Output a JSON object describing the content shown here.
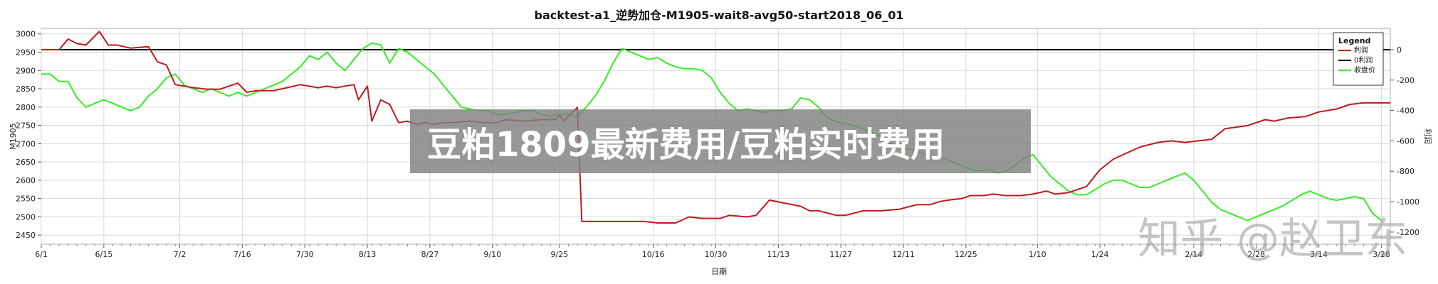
{
  "overlay_text": "豆粕1809最新费用/豆粕实时费用",
  "watermark_text": "知乎 @赵卫东",
  "colors": {
    "profit": "#c0191e",
    "zero": "#000000",
    "close": "#33ee22",
    "grid": "#d8d8d8",
    "overlay": "#808080"
  },
  "chart_data": {
    "type": "line",
    "title": "backtest-a1_逆势加仓-M1905-wait8-avg50-start2018_06_01",
    "xlabel": "日期",
    "ylabel_left": "M1905",
    "ylabel_right": "利润",
    "legend_title": "Legend",
    "legend_position": "top-right",
    "grid": true,
    "x_range": [
      0,
      302
    ],
    "x_ticks": [
      {
        "label": "6/1",
        "day": 0
      },
      {
        "label": "6/15",
        "day": 14
      },
      {
        "label": "7/2",
        "day": 31
      },
      {
        "label": "7/16",
        "day": 45
      },
      {
        "label": "7/30",
        "day": 59
      },
      {
        "label": "8/13",
        "day": 73
      },
      {
        "label": "8/27",
        "day": 87
      },
      {
        "label": "9/10",
        "day": 101
      },
      {
        "label": "9/25",
        "day": 116
      },
      {
        "label": "10/16",
        "day": 137
      },
      {
        "label": "10/30",
        "day": 151
      },
      {
        "label": "11/13",
        "day": 165
      },
      {
        "label": "11/27",
        "day": 179
      },
      {
        "label": "12/11",
        "day": 193
      },
      {
        "label": "12/25",
        "day": 207
      },
      {
        "label": "1/10",
        "day": 223
      },
      {
        "label": "1/24",
        "day": 237
      },
      {
        "label": "2/14",
        "day": 258
      },
      {
        "label": "2/28",
        "day": 272
      },
      {
        "label": "3/14",
        "day": 286
      },
      {
        "label": "3/28",
        "day": 300
      }
    ],
    "y_left": {
      "range": [
        2425,
        3015
      ],
      "ticks": [
        2450,
        2500,
        2550,
        2600,
        2650,
        2700,
        2750,
        2800,
        2850,
        2900,
        2950,
        3000
      ]
    },
    "y_right": {
      "range": [
        -1280,
        140
      ],
      "ticks": [
        0,
        -200,
        -400,
        -600,
        -800,
        -1000,
        -1200
      ]
    },
    "series": [
      {
        "name": "利润",
        "axis": "right",
        "color": "#c0191e",
        "x": [
          0,
          4,
          6,
          8,
          10,
          13,
          15,
          17,
          20,
          24,
          26,
          28,
          30,
          32,
          34,
          37,
          40,
          42,
          44,
          46,
          48,
          52,
          55,
          58,
          60,
          62,
          64,
          66,
          70,
          71,
          73,
          74,
          76,
          78,
          80,
          82,
          84,
          86,
          88,
          90,
          92,
          96,
          99,
          102,
          104,
          108,
          112,
          115,
          116,
          117,
          120,
          121,
          125,
          130,
          135,
          138,
          142,
          145,
          148,
          152,
          154,
          158,
          160,
          163,
          170,
          172,
          174,
          178,
          180,
          184,
          188,
          192,
          196,
          199,
          201,
          203,
          206,
          208,
          211,
          213,
          216,
          219,
          222,
          225,
          227,
          230,
          234,
          237,
          240,
          243,
          246,
          250,
          253,
          256,
          259,
          262,
          265,
          270,
          274,
          276,
          279,
          283,
          286,
          290,
          293,
          296,
          302
        ],
        "values": [
          0,
          0,
          70,
          40,
          30,
          120,
          30,
          30,
          10,
          20,
          -80,
          -100,
          -230,
          -240,
          -250,
          -260,
          -260,
          -240,
          -220,
          -280,
          -270,
          -270,
          -250,
          -230,
          -240,
          -250,
          -240,
          -250,
          -230,
          -330,
          -240,
          -470,
          -330,
          -360,
          -480,
          -470,
          -490,
          -480,
          -490,
          -480,
          -480,
          -470,
          -480,
          -480,
          -460,
          -470,
          -460,
          -460,
          -430,
          -470,
          -380,
          -1130,
          -1130,
          -1130,
          -1130,
          -1140,
          -1140,
          -1100,
          -1110,
          -1110,
          -1090,
          -1100,
          -1090,
          -990,
          -1030,
          -1060,
          -1060,
          -1090,
          -1090,
          -1060,
          -1060,
          -1050,
          -1020,
          -1020,
          -1000,
          -990,
          -980,
          -960,
          -960,
          -950,
          -960,
          -960,
          -950,
          -930,
          -950,
          -940,
          -900,
          -790,
          -720,
          -680,
          -640,
          -610,
          -600,
          -610,
          -600,
          -590,
          -520,
          -500,
          -460,
          -470,
          -450,
          -440,
          -410,
          -390,
          -360,
          -350,
          -350
        ]
      },
      {
        "name": "0利润",
        "axis": "right",
        "color": "#000000",
        "x": [
          0,
          302
        ],
        "values": [
          0,
          0
        ]
      },
      {
        "name": "收盘价",
        "axis": "left",
        "color": "#33ee22",
        "x": [
          0,
          2,
          4,
          6,
          8,
          10,
          12,
          14,
          16,
          18,
          20,
          22,
          24,
          26,
          28,
          30,
          32,
          34,
          36,
          38,
          40,
          42,
          44,
          46,
          48,
          50,
          52,
          54,
          56,
          58,
          60,
          62,
          64,
          66,
          68,
          70,
          72,
          74,
          76,
          78,
          80,
          82,
          84,
          86,
          88,
          90,
          92,
          94,
          96,
          98,
          100,
          102,
          104,
          106,
          108,
          110,
          112,
          114,
          116,
          118,
          120,
          122,
          124,
          126,
          128,
          130,
          132,
          134,
          136,
          138,
          140,
          142,
          144,
          146,
          148,
          150,
          152,
          154,
          156,
          158,
          160,
          162,
          164,
          166,
          168,
          170,
          172,
          174,
          176,
          178,
          180,
          182,
          184,
          186,
          188,
          190,
          192,
          194,
          196,
          198,
          200,
          202,
          204,
          206,
          208,
          210,
          212,
          214,
          216,
          218,
          220,
          222,
          224,
          226,
          228,
          230,
          232,
          234,
          236,
          238,
          240,
          242,
          244,
          246,
          248,
          250,
          252,
          254,
          256,
          258,
          260,
          262,
          264,
          266,
          268,
          270,
          272,
          274,
          276,
          278,
          280,
          282,
          284,
          286,
          288,
          290,
          292,
          294,
          296,
          298,
          300
        ],
        "values": [
          2890,
          2890,
          2870,
          2870,
          2825,
          2800,
          2810,
          2820,
          2810,
          2800,
          2790,
          2800,
          2830,
          2850,
          2880,
          2890,
          2860,
          2850,
          2840,
          2850,
          2840,
          2830,
          2840,
          2830,
          2840,
          2850,
          2860,
          2870,
          2890,
          2910,
          2940,
          2930,
          2950,
          2920,
          2900,
          2930,
          2960,
          2975,
          2970,
          2920,
          2960,
          2950,
          2930,
          2910,
          2890,
          2860,
          2830,
          2800,
          2795,
          2790,
          2790,
          2780,
          2780,
          2785,
          2790,
          2790,
          2780,
          2775,
          2780,
          2780,
          2775,
          2800,
          2830,
          2870,
          2920,
          2960,
          2950,
          2940,
          2930,
          2935,
          2920,
          2910,
          2905,
          2905,
          2900,
          2880,
          2840,
          2810,
          2790,
          2795,
          2790,
          2785,
          2790,
          2790,
          2795,
          2825,
          2820,
          2800,
          2770,
          2760,
          2755,
          2750,
          2740,
          2730,
          2720,
          2700,
          2690,
          2685,
          2680,
          2670,
          2665,
          2660,
          2650,
          2640,
          2630,
          2625,
          2630,
          2620,
          2625,
          2640,
          2660,
          2670,
          2640,
          2610,
          2590,
          2570,
          2560,
          2560,
          2575,
          2590,
          2600,
          2600,
          2590,
          2580,
          2580,
          2590,
          2600,
          2610,
          2620,
          2600,
          2570,
          2540,
          2520,
          2510,
          2500,
          2490,
          2500,
          2510,
          2520,
          2530,
          2545,
          2560,
          2570,
          2560,
          2550,
          2545,
          2550,
          2555,
          2550,
          2510,
          2490
        ]
      }
    ]
  }
}
